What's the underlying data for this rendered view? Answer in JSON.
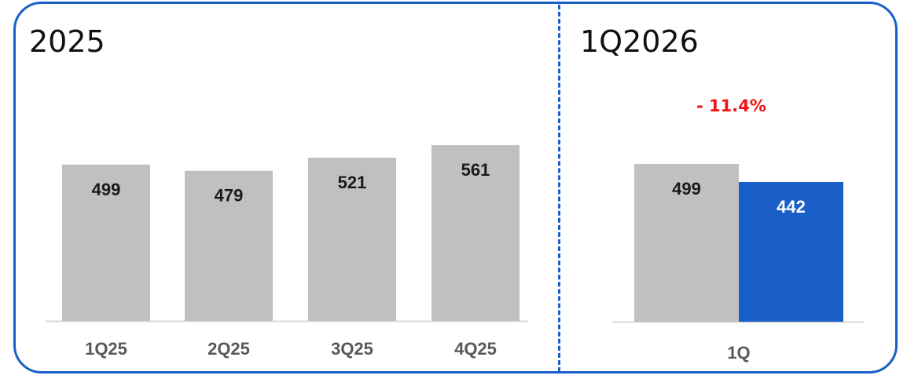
{
  "colors": {
    "frame": "#1a5fc8",
    "bar_gray": "#c0c0c0",
    "bar_blue": "#1a5fc8",
    "change_red": "#f01414",
    "label_dark": "#1a1a1a",
    "label_gray": "#595959",
    "baseline": "#d9d9d9"
  },
  "chart_data": [
    {
      "type": "bar",
      "title": "2025",
      "categories": [
        "1Q25",
        "2Q25",
        "3Q25",
        "4Q25"
      ],
      "values": [
        499,
        479,
        521,
        561
      ],
      "ylim": [
        0,
        561
      ]
    },
    {
      "type": "bar",
      "title": "1Q2026",
      "annotation": "- 11.4%",
      "categories": [
        "1Q"
      ],
      "series": [
        {
          "values": [
            499
          ],
          "color": "#c0c0c0"
        },
        {
          "values": [
            442
          ],
          "color": "#1a5fc8"
        }
      ],
      "ylim": [
        0,
        561
      ]
    }
  ]
}
